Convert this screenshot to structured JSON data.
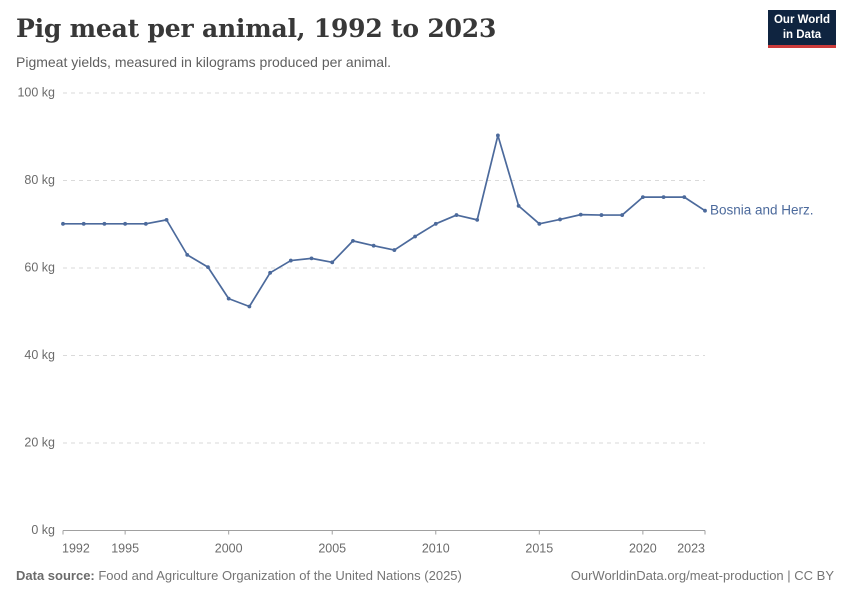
{
  "header": {
    "title": "Pig meat per animal, 1992 to 2023",
    "subtitle": "Pigmeat yields, measured in kilograms produced per animal.",
    "logo_line1": "Our World",
    "logo_line2": "in Data"
  },
  "chart_data": {
    "type": "line",
    "title": "Pig meat per animal, 1992 to 2023",
    "xlabel": "",
    "ylabel": "kg",
    "xlim": [
      1992,
      2023
    ],
    "ylim": [
      0,
      100
    ],
    "x_ticks": [
      1992,
      1995,
      2000,
      2005,
      2010,
      2015,
      2020,
      2023
    ],
    "y_ticks": [
      0,
      20,
      40,
      60,
      80,
      100
    ],
    "y_tick_suffix": " kg",
    "grid": "horizontal-dashed",
    "legend_position": "end-of-line-label",
    "x": [
      1992,
      1993,
      1994,
      1995,
      1996,
      1997,
      1998,
      1999,
      2000,
      2001,
      2002,
      2003,
      2004,
      2005,
      2006,
      2007,
      2008,
      2009,
      2010,
      2011,
      2012,
      2013,
      2014,
      2015,
      2016,
      2017,
      2018,
      2019,
      2020,
      2021,
      2022,
      2023
    ],
    "series": [
      {
        "name": "Bosnia and Herz.",
        "color": "#4c6a9c",
        "values": [
          70.1,
          70.1,
          70.1,
          70.1,
          70.1,
          71.0,
          63.0,
          60.2,
          53.0,
          51.2,
          58.9,
          61.7,
          62.2,
          61.3,
          66.2,
          65.1,
          64.1,
          67.2,
          70.1,
          72.1,
          71.0,
          90.3,
          74.2,
          70.1,
          71.1,
          72.2,
          72.1,
          72.1,
          76.2,
          76.2,
          76.2,
          73.1
        ]
      }
    ]
  },
  "footer": {
    "source_label": "Data source:",
    "source_text": " Food and Agriculture Organization of the United Nations (2025)",
    "credit": "OurWorldinData.org/meat-production | CC BY"
  },
  "colors": {
    "line": "#4c6a9c",
    "grid": "#dadada",
    "axis": "#a0a0a0",
    "logo_navy": "#0f2440",
    "logo_red": "#cc3b3b"
  }
}
